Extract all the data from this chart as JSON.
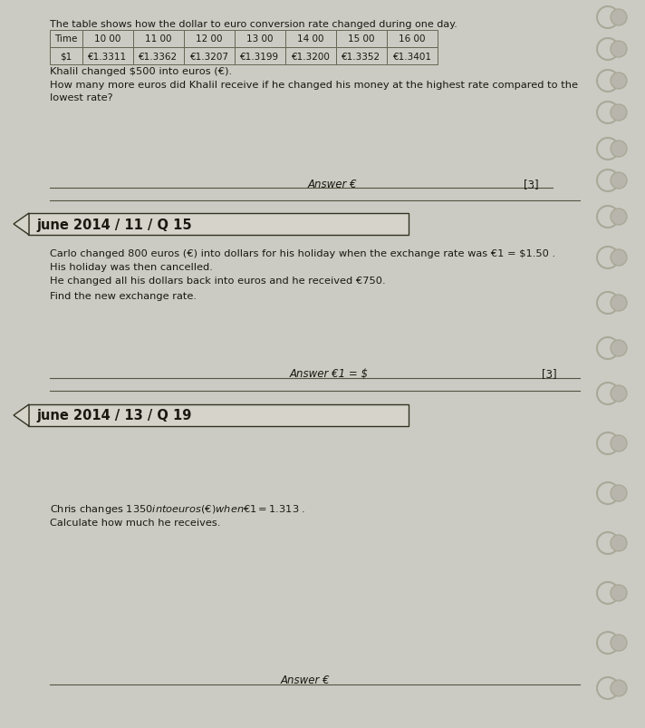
{
  "bg_color": "#cccbc3",
  "page_top_text": "The table shows how the dollar to euro conversion rate changed during one day.",
  "table_headers": [
    "Time",
    "10 00",
    "11 00",
    "12 00",
    "13 00",
    "14 00",
    "15 00",
    "16 00"
  ],
  "table_row1_label": "$1",
  "table_row1_values": [
    "€1.3311",
    "€1.3362",
    "€1.3207",
    "€1.3199",
    "€1.3200",
    "€1.3352",
    "€1.3401"
  ],
  "q1_intro": "Khalil changed $500 into euros (€).",
  "q1_question_l1": "How many more euros did Khalil receive if he changed his money at the highest rate compared to the",
  "q1_question_l2": "lowest rate?",
  "q1_answer_label": "Answer €",
  "q1_marks": "[3]",
  "section2_label": "june 2014 / 11 / Q 15",
  "q2_text_line1": "Carlo changed 800 euros (€) into dollars for his holiday when the exchange rate was €1 = $1.50 .",
  "q2_text_line2": "His holiday was then cancelled.",
  "q2_text_line3": "He changed all his dollars back into euros and he received €750.",
  "q2_question": "Find the new exchange rate.",
  "q2_answer_label": "Answer €1 = $",
  "q2_marks": "[3]",
  "section3_label": "june 2014 / 13 / Q 19",
  "q3_text": "Chris changes $1350 into euros (€) when €1 = $1.313 .",
  "q3_question": "Calculate how much he receives.",
  "q3_answer_label": "Answer €",
  "text_color": "#1a1810",
  "table_bg": "#cccbc3",
  "table_border": "#666655",
  "banner_bg": "#d5d3ca",
  "banner_border": "#333322",
  "spiral_color": "#aaa898"
}
